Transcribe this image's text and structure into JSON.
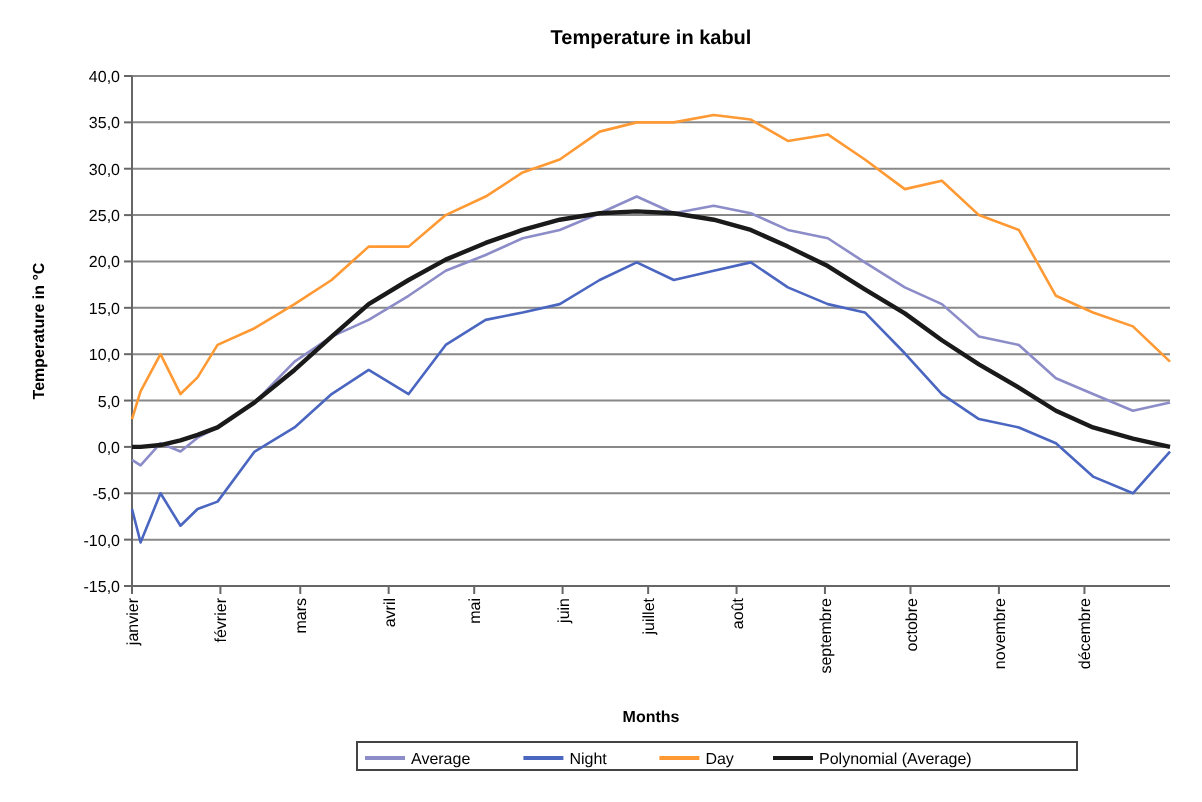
{
  "chart_data": {
    "type": "line",
    "title": "Temperature in kabul",
    "xlabel": "Months",
    "ylabel": "Temperature in °C",
    "x": [
      "--01-01",
      "--01-04",
      "--01-11",
      "--01-18",
      "--01-24",
      "--01-31",
      "--02-13",
      "--02-27",
      "--03-12",
      "--03-25",
      "--04-08",
      "--04-21",
      "--05-05",
      "--05-18",
      "--05-31",
      "--06-14",
      "--06-27",
      "--07-10",
      "--07-24",
      "--08-06",
      "--08-19",
      "--09-02",
      "--09-15",
      "--09-29",
      "--10-12",
      "--10-25",
      "--11-08",
      "--11-21",
      "--12-04",
      "--12-18",
      "--12-31"
    ],
    "xlim": [
      "--01-01",
      "--12-31"
    ],
    "xticks": [
      {
        "value": "--01-01",
        "label": "janvier"
      },
      {
        "value": "--02-01",
        "label": "février"
      },
      {
        "value": "--03-01",
        "label": "mars"
      },
      {
        "value": "--04-01",
        "label": "avril"
      },
      {
        "value": "--05-01",
        "label": "mai"
      },
      {
        "value": "--06-01",
        "label": "juin"
      },
      {
        "value": "--07-01",
        "label": "juillet"
      },
      {
        "value": "--08-01",
        "label": "août"
      },
      {
        "value": "--09-01",
        "label": "septembre"
      },
      {
        "value": "--10-01",
        "label": "octobre"
      },
      {
        "value": "--11-01",
        "label": "novembre"
      },
      {
        "value": "--12-01",
        "label": "décembre"
      }
    ],
    "ylim": [
      -15,
      40
    ],
    "yticks": [
      {
        "value": -15,
        "label": "-15,0"
      },
      {
        "value": -10,
        "label": "-10,0"
      },
      {
        "value": -5,
        "label": "-5,0"
      },
      {
        "value": 0,
        "label": "0,0"
      },
      {
        "value": 5,
        "label": "5,0"
      },
      {
        "value": 10,
        "label": "10,0"
      },
      {
        "value": 15,
        "label": "15,0"
      },
      {
        "value": 20,
        "label": "20,0"
      },
      {
        "value": 25,
        "label": "25,0"
      },
      {
        "value": 30,
        "label": "30,0"
      },
      {
        "value": 35,
        "label": "35,0"
      },
      {
        "value": 40,
        "label": "40,0"
      }
    ],
    "grid": "y",
    "legend": "bottom",
    "marker": "none",
    "line_style": "solid",
    "series": [
      {
        "name": "Average",
        "color": "#8c8cc8",
        "values": [
          -1.4,
          -2,
          0.4,
          -0.5,
          1,
          2.1,
          4.8,
          9.2,
          11.9,
          13.7,
          16.3,
          19,
          20.7,
          22.5,
          23.4,
          25.2,
          27,
          25.2,
          26,
          25.2,
          23.4,
          22.5,
          19.9,
          17.2,
          15.4,
          11.9,
          11,
          7.4,
          5.7,
          3.9,
          4.8
        ]
      },
      {
        "name": "Night",
        "color": "#4a66c0",
        "values": [
          -6.7,
          -10.3,
          -5,
          -8.5,
          -6.7,
          -5.9,
          -0.5,
          2.1,
          5.7,
          8.3,
          5.7,
          11,
          13.7,
          14.5,
          15.4,
          18,
          19.9,
          18,
          19,
          19.9,
          17.2,
          15.4,
          14.5,
          10.1,
          5.7,
          3,
          2.1,
          0.4,
          -3.2,
          -5,
          -0.5
        ]
      },
      {
        "name": "Day",
        "color": "#ff9933",
        "values": [
          3,
          6,
          10,
          5.7,
          7.5,
          11,
          12.8,
          15.4,
          18,
          21.6,
          21.6,
          25,
          27,
          29.6,
          31,
          34,
          35,
          35,
          35.8,
          35.3,
          33,
          33.7,
          31,
          27.8,
          28.7,
          25,
          23.4,
          16.3,
          14.5,
          13,
          9.2
        ]
      },
      {
        "name": "Polynomial (Average)",
        "color": "#1a1a1a",
        "values": [
          0,
          0,
          0.2,
          0.7,
          1.3,
          2.1,
          4.8,
          8.3,
          11.9,
          15.4,
          18,
          20.2,
          22,
          23.4,
          24.5,
          25.2,
          25.4,
          25.2,
          24.5,
          23.4,
          21.6,
          19.5,
          17,
          14.4,
          11.5,
          8.9,
          6.4,
          3.9,
          2.1,
          0.9,
          0
        ]
      }
    ]
  }
}
